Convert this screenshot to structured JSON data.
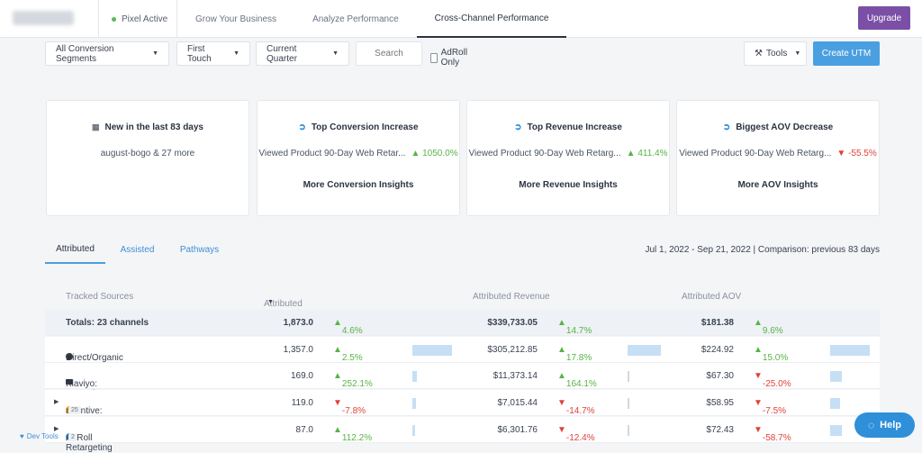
{
  "nav": {
    "pixel_status": "Pixel Active",
    "tabs": [
      "Grow Your Business",
      "Analyze Performance",
      "Cross-Channel Performance"
    ],
    "upgrade": "Upgrade"
  },
  "toolbar": {
    "segment": "All Conversion Segments",
    "touch": "First Touch",
    "period": "Current Quarter",
    "search_placeholder": "Search",
    "adroll_only": "AdRoll Only",
    "tools": "Tools",
    "create_utm": "Create UTM"
  },
  "cards": [
    {
      "title": "New in the last 83 days",
      "body": "august-bogo & 27 more",
      "change": "",
      "link": ""
    },
    {
      "title": "Top Conversion Increase",
      "body": "Viewed Product 90-Day Web Retar...",
      "change": "1050.0%",
      "link": "More Conversion Insights"
    },
    {
      "title": "Top Revenue Increase",
      "body": "Viewed Product 90-Day Web Retarg...",
      "change": "411.4%",
      "link": "More Revenue Insights"
    },
    {
      "title": "Biggest AOV Decrease",
      "body": "Viewed Product 90-Day Web Retarg...",
      "change": "-55.5%",
      "link": "More AOV Insights"
    }
  ],
  "subtabs": [
    "Attributed",
    "Assisted",
    "Pathways"
  ],
  "date_range": "Jul 1, 2022 - Sep 21, 2022 | Comparison: previous 83 days",
  "table": {
    "headers": [
      "Tracked Sources",
      "Attributed Conversions",
      "Attributed Revenue",
      "Attributed AOV"
    ],
    "rows": [
      {
        "source": "Totals: 23 channels",
        "badge": "",
        "conv": "1,873.0",
        "conv_chg": "4.6%",
        "rev": "$339,733.05",
        "rev_chg": "14.7%",
        "aov": "$181.38",
        "aov_chg": "9.6%"
      },
      {
        "source": "Direct/Organic",
        "badge": "",
        "conv": "1,357.0",
        "conv_chg": "2.5%",
        "rev": "$305,212.85",
        "rev_chg": "17.8%",
        "aov": "$224.92",
        "aov_chg": "15.0%"
      },
      {
        "source": "Klaviyo: campaign",
        "badge": "",
        "conv": "169.0",
        "conv_chg": "252.1%",
        "rev": "$11,373.14",
        "rev_chg": "164.1%",
        "aov": "$67.30",
        "aov_chg": "-25.0%"
      },
      {
        "source": "attentive: text",
        "badge": "25",
        "conv": "119.0",
        "conv_chg": "-7.8%",
        "rev": "$7,015.44",
        "rev_chg": "-14.7%",
        "aov": "$58.95",
        "aov_chg": "-7.5%"
      },
      {
        "source": "AdRoll Retargeting",
        "badge": "2",
        "conv": "87.0",
        "conv_chg": "112.2%",
        "rev": "$6,301.76",
        "rev_chg": "-12.4%",
        "aov": "$72.43",
        "aov_chg": "-58.7%"
      }
    ]
  },
  "help": "Help",
  "dev_tools": "Dev Tools"
}
